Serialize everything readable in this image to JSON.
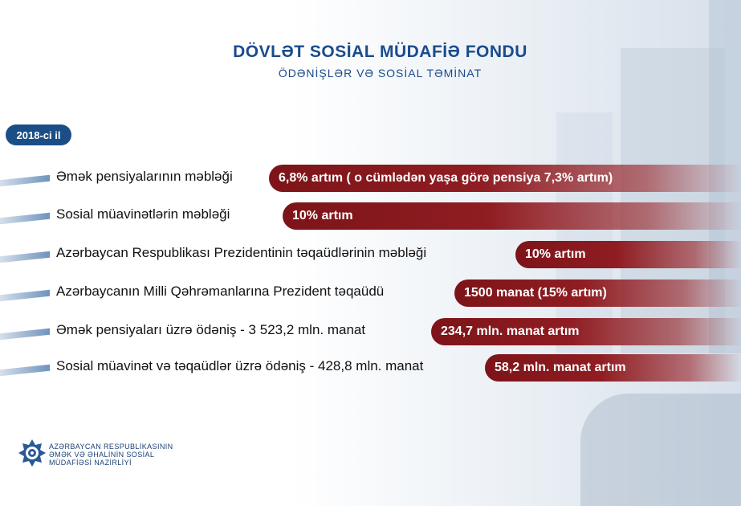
{
  "header": {
    "title": "DÖVLƏT SOSİAL MÜDAFİƏ FONDU",
    "subtitle": "ÖDƏNİŞLƏR VƏ SOSİAL TƏMİNAT"
  },
  "year_badge": "2018-ci il",
  "rows": [
    {
      "label": "Əmək pensiyalarının məbləği",
      "value": "6,8% artım ( o cümlədən yaşa görə pensiya 7,3% artım)"
    },
    {
      "label": "Sosial müavinətlərin məbləği",
      "value": "10%  artım"
    },
    {
      "label": "Azərbaycan Respublikası Prezidentinin təqaüdlərinin məbləği",
      "value": "10%  artım"
    },
    {
      "label": "Azərbaycanın Milli Qəhrəmanlarına Prezident təqaüdü",
      "value": "1500 manat  (15% artım)"
    },
    {
      "label": "Əmək pensiyaları üzrə ödəniş - 3 523,2 mln. manat",
      "value": "234,7 mln. manat artım"
    },
    {
      "label": "Sosial müavinət və təqaüdlər üzrə ödəniş - 428,8 mln. manat",
      "value": "58,2 mln. manat artım"
    }
  ],
  "logo": {
    "icon": "ministry-emblem-icon",
    "line1": "AZƏRBAYCAN RESPUBLİKASININ",
    "line2": "ƏMƏK VƏ ƏHALİNİN SOSİAL",
    "line3": "MÜDAFİƏSİ NAZİRLİYİ"
  }
}
